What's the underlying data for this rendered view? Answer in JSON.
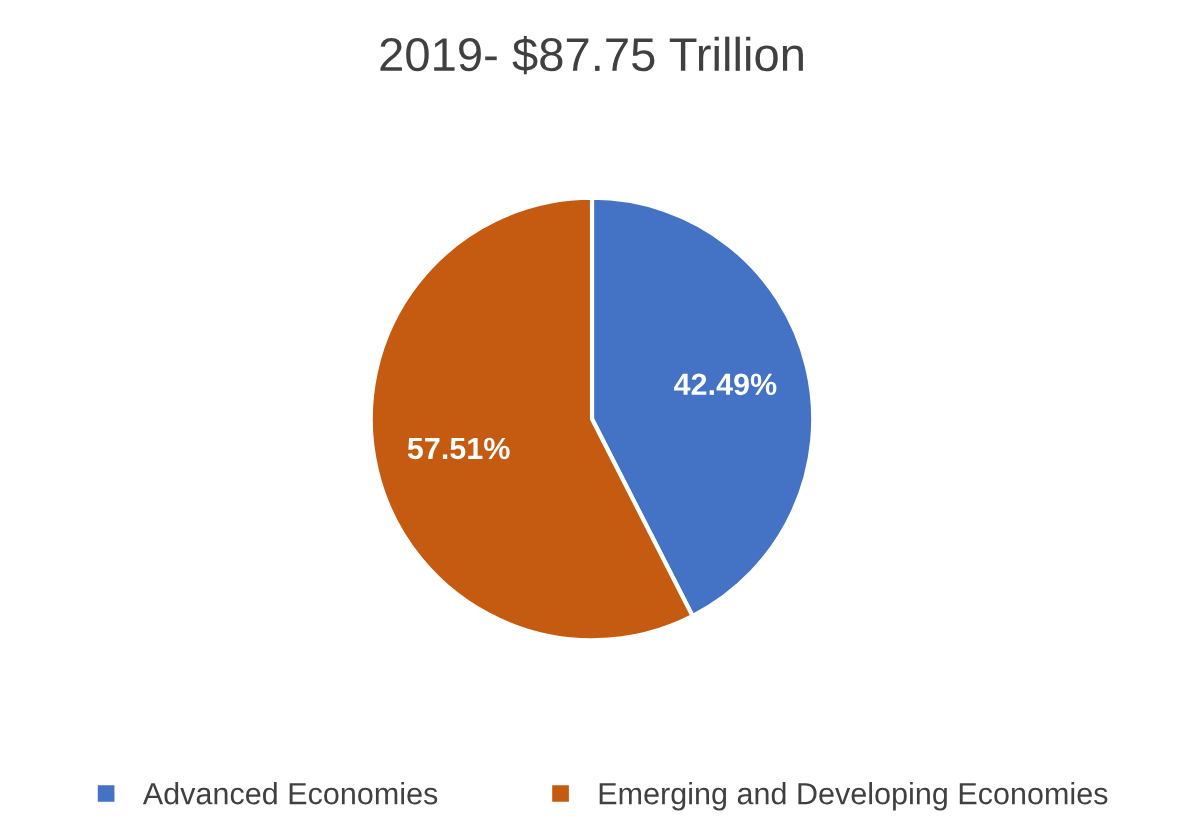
{
  "chart_data": {
    "type": "pie",
    "title": "2019- $87.75 Trillion",
    "categories": [
      "Advanced Economies",
      "Emerging and Developing Economies"
    ],
    "values": [
      42.49,
      57.51
    ],
    "colors": [
      "#4472c4",
      "#c55a11"
    ],
    "value_labels": [
      "42.49%",
      "57.51%"
    ],
    "legend": "bottom"
  }
}
